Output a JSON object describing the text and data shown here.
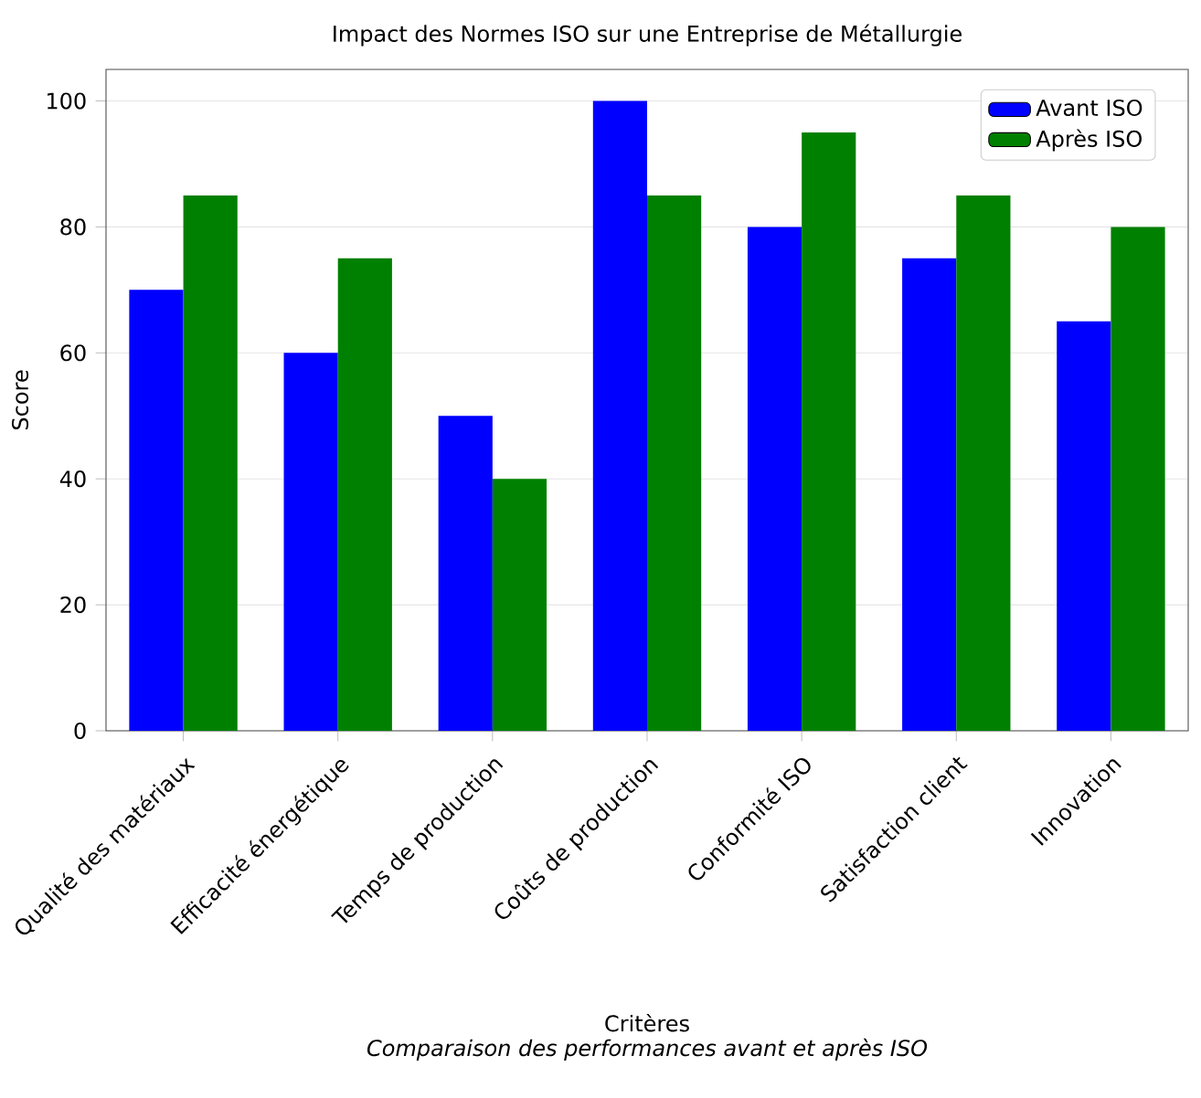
{
  "chart_data": {
    "type": "bar",
    "title": "Impact des Normes ISO sur une Entreprise de Métallurgie",
    "xlabel": "Critères",
    "ylabel": "Score",
    "annotations": [
      "Comparaison des performances avant et après ISO"
    ],
    "categories": [
      "Qualité des matériaux",
      "Efficacité énergétique",
      "Temps de production",
      "Coûts de production",
      "Conformité ISO",
      "Satisfaction client",
      "Innovation"
    ],
    "series": [
      {
        "name": "Avant ISO",
        "color": "#0000ff",
        "values": [
          70,
          60,
          50,
          100,
          80,
          75,
          65
        ]
      },
      {
        "name": "Après ISO",
        "color": "#008000",
        "values": [
          85,
          75,
          40,
          85,
          95,
          85,
          80
        ]
      }
    ],
    "ylim": [
      0,
      105
    ],
    "yticks": [
      0,
      20,
      40,
      60,
      80,
      100
    ],
    "grid": "y",
    "legend": "top right"
  }
}
